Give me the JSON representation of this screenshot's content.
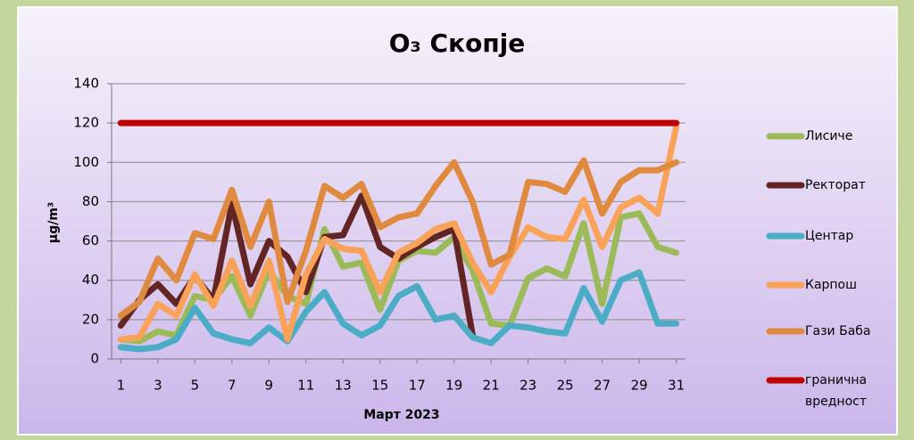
{
  "chart_data": {
    "type": "line",
    "title": "O₃ Скопје",
    "x_label": "Март 2023",
    "y_label": "µg/m³",
    "x": [
      1,
      2,
      3,
      4,
      5,
      6,
      7,
      8,
      9,
      10,
      11,
      12,
      13,
      14,
      15,
      16,
      17,
      18,
      19,
      20,
      21,
      22,
      23,
      24,
      25,
      26,
      27,
      28,
      29,
      30,
      31
    ],
    "xlim": [
      0.5,
      31.5
    ],
    "xticks": [
      1,
      3,
      5,
      7,
      9,
      11,
      13,
      15,
      17,
      19,
      21,
      23,
      25,
      27,
      29,
      31
    ],
    "ylim": [
      0,
      140
    ],
    "yticks": [
      0,
      20,
      40,
      60,
      80,
      100,
      120,
      140
    ],
    "grid": true,
    "legend": "right",
    "series": [
      {
        "name": "Лисиче",
        "color": "#9bbb59",
        "values": [
          10,
          9,
          14,
          12,
          32,
          30,
          42,
          22,
          45,
          32,
          28,
          66,
          47,
          49,
          25,
          50,
          55,
          54,
          62,
          45,
          18,
          17,
          41,
          46,
          42,
          69,
          28,
          72,
          74,
          57,
          54
        ]
      },
      {
        "name": "Ректорат",
        "color": "#632523",
        "values": [
          17,
          30,
          38,
          28,
          42,
          30,
          79,
          38,
          60,
          52,
          34,
          62,
          63,
          83,
          57,
          51,
          57,
          62,
          66,
          12,
          null,
          null,
          null,
          null,
          null,
          null,
          null,
          null,
          null,
          null,
          null
        ]
      },
      {
        "name": "Центар",
        "color": "#4bacc6",
        "values": [
          6,
          5,
          6,
          10,
          26,
          13,
          10,
          8,
          16,
          9,
          24,
          34,
          18,
          12,
          17,
          32,
          37,
          20,
          22,
          11,
          8,
          17,
          16,
          14,
          13,
          36,
          19,
          40,
          44,
          18,
          18
        ]
      },
      {
        "name": "Карпош",
        "color": "#faa258",
        "values": [
          10,
          11,
          28,
          22,
          43,
          27,
          50,
          27,
          50,
          10,
          43,
          61,
          56,
          55,
          34,
          54,
          59,
          66,
          69,
          49,
          34,
          52,
          67,
          62,
          61,
          81,
          57,
          77,
          82,
          74,
          118
        ]
      },
      {
        "name": "Гази Баба",
        "color": "#e08a40",
        "values": [
          22,
          29,
          51,
          40,
          64,
          61,
          86,
          57,
          80,
          29,
          55,
          88,
          82,
          89,
          67,
          72,
          74,
          88,
          100,
          80,
          48,
          53,
          90,
          89,
          85,
          101,
          74,
          90,
          96,
          96,
          100
        ]
      },
      {
        "name": "гранична вредност",
        "color": "#c00000",
        "values": [
          120,
          120,
          120,
          120,
          120,
          120,
          120,
          120,
          120,
          120,
          120,
          120,
          120,
          120,
          120,
          120,
          120,
          120,
          120,
          120,
          120,
          120,
          120,
          120,
          120,
          120,
          120,
          120,
          120,
          120,
          120
        ]
      }
    ]
  }
}
